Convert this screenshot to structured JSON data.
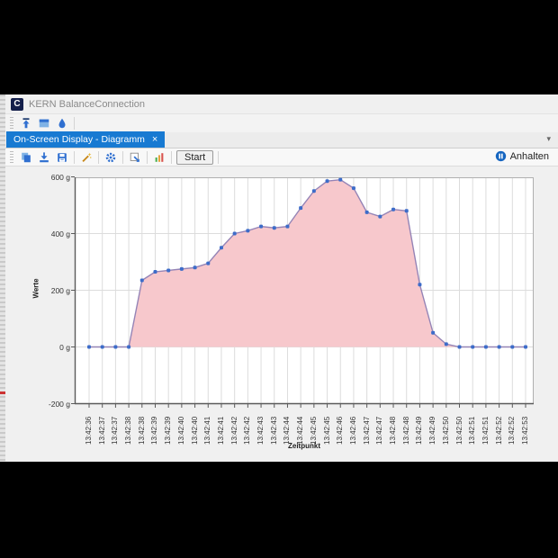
{
  "window": {
    "title": "KERN BalanceConnection",
    "logo_letter": "C"
  },
  "toolbar_main": {
    "icons": [
      "upload-icon",
      "window-icon",
      "droplet-icon"
    ]
  },
  "tabs": {
    "active_label": "On-Screen Display - Diagramm",
    "close_glyph": "×",
    "overflow_caret": "▾"
  },
  "toolbar_chart": {
    "icons": [
      "copy-icon",
      "print-icon",
      "save-icon",
      "wand-icon",
      "gear-icon",
      "export-icon",
      "statistics-icon"
    ],
    "start_label": "Start",
    "stop_label": "Anhalten",
    "stop_icon": "pause-circle-icon"
  },
  "chart_data": {
    "type": "area",
    "xlabel": "Zeitpunkt",
    "ylabel": "Werte",
    "ylim": [
      -200,
      600
    ],
    "y_ticks": [
      {
        "value": 600,
        "label": "600 g"
      },
      {
        "value": 400,
        "label": "400 g"
      },
      {
        "value": 200,
        "label": "200 g"
      },
      {
        "value": 0,
        "label": "0 g"
      },
      {
        "value": -200,
        "label": "-200 g"
      }
    ],
    "grid": {
      "vertical": true,
      "horizontal_at": [
        400,
        200,
        0
      ]
    },
    "legend_position": "none",
    "categories": [
      "13:42:36",
      "13:42:37",
      "13:42:37",
      "13:42:38",
      "13:42:38",
      "13:42:39",
      "13:42:39",
      "13:42:40",
      "13:42:40",
      "13:42:41",
      "13:42:41",
      "13:42:42",
      "13:42:42",
      "13:42:43",
      "13:42:43",
      "13:42:44",
      "13:42:44",
      "13:42:45",
      "13:42:45",
      "13:42:46",
      "13:42:46",
      "13:42:47",
      "13:42:47",
      "13:42:48",
      "13:42:48",
      "13:42:49",
      "13:42:49",
      "13:42:50",
      "13:42:50",
      "13:42:51",
      "13:42:51",
      "13:42:52",
      "13:42:52",
      "13:42:53"
    ],
    "values": [
      0,
      0,
      0,
      0,
      235,
      265,
      270,
      275,
      280,
      295,
      350,
      400,
      410,
      425,
      420,
      425,
      490,
      550,
      585,
      590,
      560,
      475,
      460,
      485,
      480,
      220,
      50,
      10,
      0,
      0,
      0,
      0,
      0,
      0
    ],
    "unit": "g",
    "colors": {
      "area_fill": "#f7c8cc",
      "line": "#9584b6",
      "marker": "#3d6cc9",
      "grid": "#dcdcdc",
      "axis": "#5a5a5a",
      "border": "#b0b0b0"
    }
  }
}
